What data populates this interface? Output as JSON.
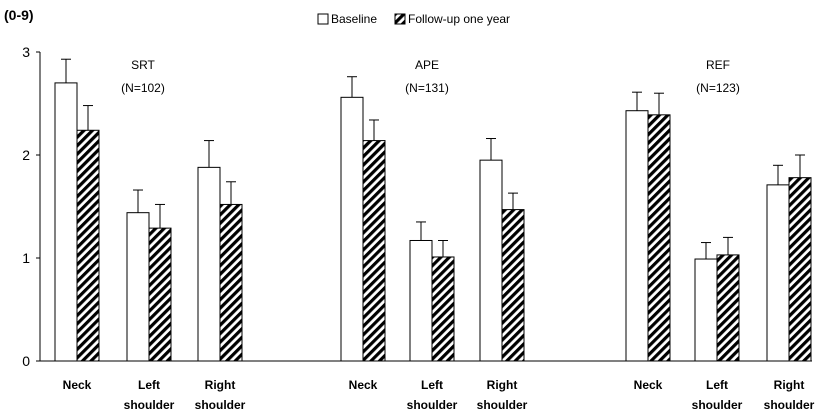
{
  "chart_data": {
    "type": "bar",
    "ylabel": "(0-9)",
    "ylim": [
      0,
      3
    ],
    "yticks": [
      0,
      1,
      2,
      3
    ],
    "grid": false,
    "legend_position": "top-center",
    "series": [
      {
        "name": "Baseline",
        "pattern": "open",
        "fill": "#ffffff"
      },
      {
        "name": "Follow-up one year",
        "pattern": "hatched",
        "fill": "#000000"
      }
    ],
    "groups": [
      {
        "title": "SRT",
        "n": "(N=102)",
        "categories": [
          {
            "label": [
              "Neck"
            ],
            "values": [
              2.7,
              2.24
            ],
            "errors": [
              0.23,
              0.24
            ]
          },
          {
            "label": [
              "Left",
              "shoulder"
            ],
            "values": [
              1.44,
              1.29
            ],
            "errors": [
              0.22,
              0.23
            ]
          },
          {
            "label": [
              "Right",
              "shoulder"
            ],
            "values": [
              1.88,
              1.52
            ],
            "errors": [
              0.26,
              0.22
            ]
          }
        ]
      },
      {
        "title": "APE",
        "n": "(N=131)",
        "categories": [
          {
            "label": [
              "Neck"
            ],
            "values": [
              2.56,
              2.14
            ],
            "errors": [
              0.2,
              0.2
            ]
          },
          {
            "label": [
              "Left",
              "shoulder"
            ],
            "values": [
              1.17,
              1.01
            ],
            "errors": [
              0.18,
              0.16
            ]
          },
          {
            "label": [
              "Right",
              "shoulder"
            ],
            "values": [
              1.95,
              1.47
            ],
            "errors": [
              0.21,
              0.16
            ]
          }
        ]
      },
      {
        "title": "REF",
        "n": "(N=123)",
        "categories": [
          {
            "label": [
              "Neck"
            ],
            "values": [
              2.43,
              2.39
            ],
            "errors": [
              0.18,
              0.21
            ]
          },
          {
            "label": [
              "Left",
              "shoulder"
            ],
            "values": [
              0.99,
              1.03
            ],
            "errors": [
              0.16,
              0.17
            ]
          },
          {
            "label": [
              "Right",
              "shoulder"
            ],
            "values": [
              1.71,
              1.78
            ],
            "errors": [
              0.19,
              0.22
            ]
          }
        ]
      }
    ]
  }
}
